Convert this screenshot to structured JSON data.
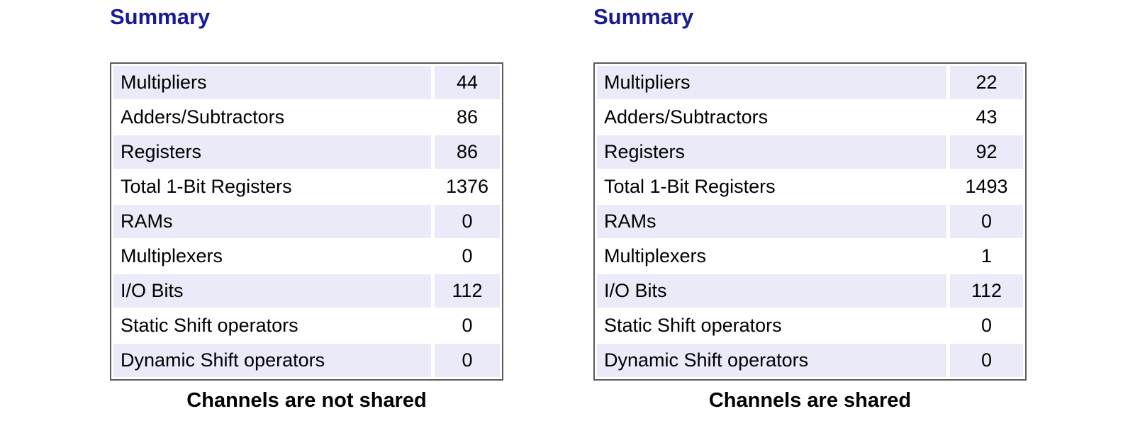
{
  "colors": {
    "title_color": "#1a1a96",
    "row_highlight": "#eaeaf8",
    "table_border": "#5a5a5a",
    "text_color": "#000000",
    "caption_color": "#000000",
    "page_bg": "#ffffff"
  },
  "panels": [
    {
      "title": "Summary",
      "caption": "Channels are not shared",
      "rows": [
        {
          "label": "Multipliers",
          "value": "44"
        },
        {
          "label": "Adders/Subtractors",
          "value": "86"
        },
        {
          "label": "Registers",
          "value": "86"
        },
        {
          "label": "Total 1-Bit Registers",
          "value": "1376"
        },
        {
          "label": "RAMs",
          "value": "0"
        },
        {
          "label": "Multiplexers",
          "value": "0"
        },
        {
          "label": "I/O Bits",
          "value": "112"
        },
        {
          "label": "Static Shift operators",
          "value": "0"
        },
        {
          "label": "Dynamic Shift operators",
          "value": "0"
        }
      ]
    },
    {
      "title": "Summary",
      "caption": "Channels are shared",
      "rows": [
        {
          "label": "Multipliers",
          "value": "22"
        },
        {
          "label": "Adders/Subtractors",
          "value": "43"
        },
        {
          "label": "Registers",
          "value": "92"
        },
        {
          "label": "Total 1-Bit Registers",
          "value": "1493"
        },
        {
          "label": "RAMs",
          "value": "0"
        },
        {
          "label": "Multiplexers",
          "value": "1"
        },
        {
          "label": "I/O Bits",
          "value": "112"
        },
        {
          "label": "Static Shift operators",
          "value": "0"
        },
        {
          "label": "Dynamic Shift operators",
          "value": "0"
        }
      ]
    }
  ]
}
